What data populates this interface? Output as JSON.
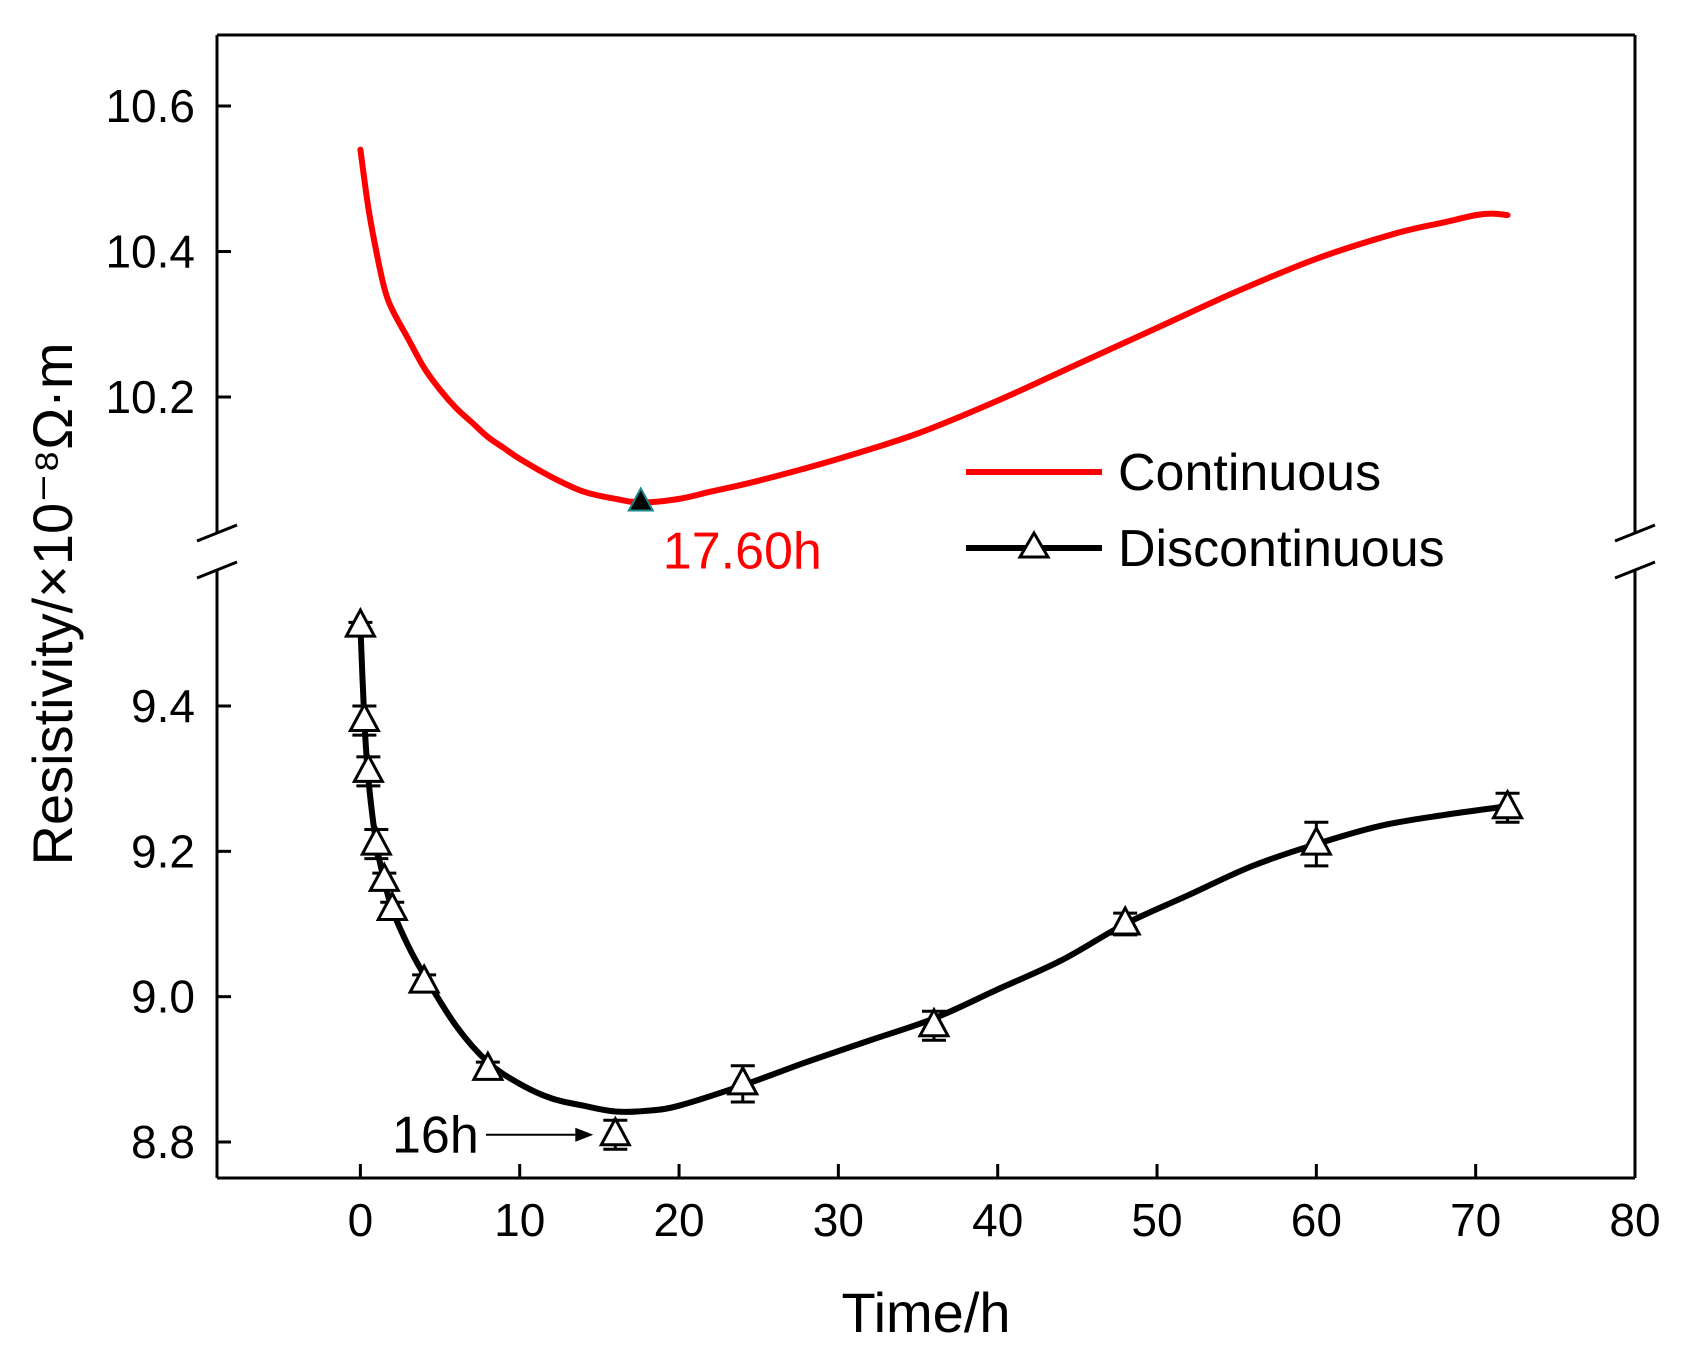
{
  "chart_data": {
    "type": "line",
    "title": "",
    "xlabel": "Time/h",
    "ylabel": "Resistivity/×10⁻⁸Ω·m",
    "xlim": [
      -9,
      80
    ],
    "x_ticks": [
      "0",
      "10",
      "20",
      "30",
      "40",
      "50",
      "60",
      "70",
      "80"
    ],
    "broken_y_axis": true,
    "upper_panel": {
      "ylim": [
        10.0,
        10.7
      ],
      "y_ticks": [
        "10.6",
        "10.4",
        "10.2"
      ]
    },
    "lower_panel": {
      "ylim": [
        8.75,
        9.55
      ],
      "y_ticks": [
        "9.4",
        "9.2",
        "9.0",
        "8.8"
      ]
    },
    "series": [
      {
        "name": "Continuous",
        "color": "#ff0000",
        "panel": "upper",
        "marker": "none",
        "x": [
          0,
          0.5,
          1,
          1.5,
          2,
          3,
          4,
          5,
          6,
          7,
          8,
          9,
          10,
          12,
          14,
          16,
          17.6,
          20,
          22,
          25,
          30,
          35,
          40,
          45,
          50,
          55,
          60,
          65,
          68,
          70,
          71,
          72
        ],
        "values": [
          10.54,
          10.46,
          10.4,
          10.35,
          10.32,
          10.28,
          10.24,
          10.21,
          10.185,
          10.165,
          10.145,
          10.13,
          10.115,
          10.09,
          10.07,
          10.06,
          10.055,
          10.06,
          10.07,
          10.085,
          10.115,
          10.15,
          10.195,
          10.245,
          10.295,
          10.345,
          10.39,
          10.425,
          10.44,
          10.45,
          10.452,
          10.45
        ]
      },
      {
        "name": "Discontinuous",
        "color": "#000000",
        "panel": "lower",
        "marker": "open-triangle",
        "x": [
          0,
          0.25,
          0.5,
          1,
          1.5,
          2,
          4,
          8,
          16,
          24,
          36,
          48,
          60,
          72
        ],
        "values": [
          9.51,
          9.38,
          9.31,
          9.21,
          9.16,
          9.12,
          9.02,
          8.9,
          8.81,
          8.88,
          8.96,
          9.1,
          9.21,
          9.26
        ],
        "error": [
          0.005,
          0.02,
          0.02,
          0.02,
          0.01,
          0.01,
          0.01,
          0.01,
          0.02,
          0.025,
          0.02,
          0.015,
          0.03,
          0.02
        ],
        "fit_curve_x": [
          0,
          0.25,
          0.5,
          1,
          1.5,
          2,
          3,
          4,
          6,
          8,
          10,
          12,
          14,
          16,
          18,
          20,
          24,
          28,
          32,
          36,
          40,
          44,
          48,
          52,
          56,
          60,
          64,
          68,
          72
        ],
        "fit_curve_y": [
          9.51,
          9.38,
          9.3,
          9.21,
          9.16,
          9.12,
          9.07,
          9.03,
          8.96,
          8.91,
          8.88,
          8.86,
          8.85,
          8.842,
          8.843,
          8.85,
          8.878,
          8.91,
          8.94,
          8.97,
          9.01,
          9.05,
          9.1,
          9.14,
          9.18,
          9.21,
          9.235,
          9.25,
          9.262
        ]
      }
    ],
    "annotations": [
      {
        "text": "17.60h",
        "color": "#ff0000",
        "x": 17.6,
        "y": 10.055,
        "panel": "upper",
        "marker": "filled-triangle"
      },
      {
        "text": "16h",
        "color": "#000000",
        "x": 16,
        "y": 8.81,
        "panel": "lower",
        "arrow": true
      }
    ],
    "legend": {
      "position": "right-middle",
      "entries": [
        "Continuous",
        "Discontinuous"
      ]
    }
  }
}
